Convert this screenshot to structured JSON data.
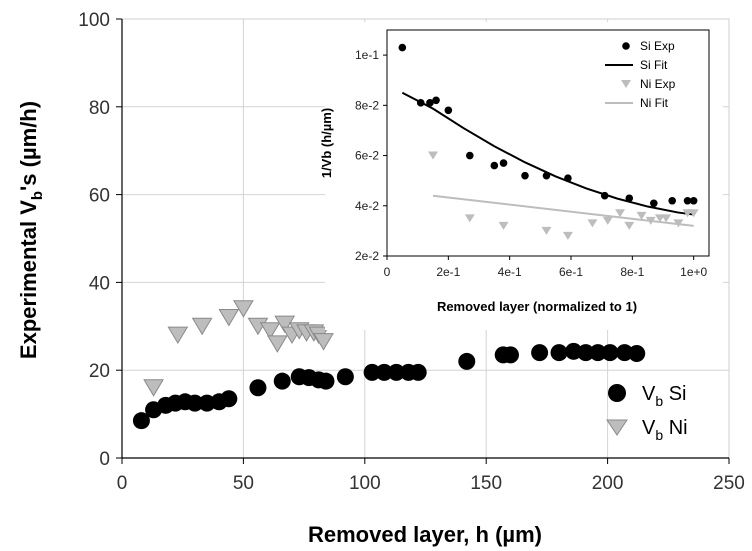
{
  "chart_data": [
    {
      "type": "scatter",
      "title": "",
      "xlabel": "Removed layer, h (µm)",
      "ylabel_main": "Experimental V",
      "ylabel_sub": "b",
      "ylabel_tail": "'s  (µm/h)",
      "xlim": [
        0,
        250
      ],
      "ylim": [
        0,
        100
      ],
      "x_ticks": [
        0,
        50,
        100,
        150,
        200,
        250
      ],
      "y_ticks": [
        0,
        20,
        40,
        60,
        80,
        100
      ],
      "grid": true,
      "legend_position": "bottom-right",
      "series": [
        {
          "name": "Vb Si",
          "legend_main": "V",
          "legend_sub": "b",
          "legend_tail": "  Si",
          "marker": "circle",
          "color": "#000000",
          "x": [
            8,
            13,
            18,
            22,
            26,
            30,
            35,
            40,
            44,
            56,
            66,
            73,
            77,
            81,
            84,
            92,
            103,
            108,
            113,
            118,
            122,
            142,
            157,
            160,
            172,
            180,
            186,
            191,
            196,
            201,
            207,
            212
          ],
          "y": [
            8.5,
            11,
            12,
            12.5,
            12.8,
            12.5,
            12.5,
            12.8,
            13.5,
            16,
            17.5,
            18.5,
            18.3,
            17.8,
            17.5,
            18.5,
            19.5,
            19.5,
            19.5,
            19.5,
            19.5,
            22,
            23.5,
            23.5,
            24,
            24,
            24.3,
            24,
            24,
            24,
            24,
            23.8
          ]
        },
        {
          "name": "Vb Ni",
          "legend_main": "V",
          "legend_sub": "b",
          "legend_tail": " Ni",
          "marker": "triangle-down",
          "color": "#bdbdbd",
          "x": [
            13,
            23,
            33,
            44,
            50,
            56,
            61,
            64,
            67,
            70,
            73,
            76,
            79,
            81,
            83
          ],
          "y": [
            16,
            28,
            30,
            32,
            34,
            30,
            29,
            26,
            30.5,
            28,
            29,
            28.5,
            28.5,
            28,
            26.5
          ]
        }
      ]
    },
    {
      "type": "scatter",
      "title": "",
      "xlabel": "Removed layer (normalized to 1)",
      "ylabel": "1/Vb (h/µm)",
      "xlim": [
        0,
        1.05
      ],
      "ylim": [
        0.02,
        0.11
      ],
      "x_ticks": [
        0,
        0.2,
        0.4,
        0.6,
        0.8,
        1.0
      ],
      "x_tick_labels": [
        "0",
        "2e-1",
        "4e-1",
        "6e-1",
        "8e-1",
        "1e+0"
      ],
      "y_ticks": [
        0.02,
        0.04,
        0.06,
        0.08,
        0.1
      ],
      "y_tick_labels": [
        "2e-2",
        "4e-2",
        "6e-2",
        "8e-2",
        "1e-1"
      ],
      "grid": false,
      "legend_position": "top-right",
      "series": [
        {
          "name": "Si Exp",
          "kind": "points",
          "marker": "circle",
          "color": "#000000",
          "x": [
            0.05,
            0.11,
            0.14,
            0.16,
            0.2,
            0.27,
            0.35,
            0.38,
            0.45,
            0.52,
            0.59,
            0.71,
            0.79,
            0.87,
            0.93,
            0.98,
            1.0
          ],
          "y": [
            0.103,
            0.081,
            0.081,
            0.082,
            0.078,
            0.06,
            0.056,
            0.057,
            0.052,
            0.052,
            0.051,
            0.044,
            0.043,
            0.041,
            0.042,
            0.042,
            0.042
          ]
        },
        {
          "name": "Si Fit",
          "kind": "line",
          "color": "#000000",
          "x": [
            0.05,
            0.15,
            0.25,
            0.35,
            0.45,
            0.55,
            0.65,
            0.75,
            0.85,
            0.95,
            1.0
          ],
          "y": [
            0.085,
            0.0787,
            0.0709,
            0.0637,
            0.0573,
            0.0517,
            0.0469,
            0.0429,
            0.0397,
            0.0373,
            0.0365
          ]
        },
        {
          "name": "Ni Exp",
          "kind": "points",
          "marker": "triangle-down",
          "color": "#bdbdbd",
          "x": [
            0.15,
            0.27,
            0.38,
            0.52,
            0.59,
            0.67,
            0.72,
            0.76,
            0.79,
            0.83,
            0.86,
            0.89,
            0.91,
            0.95,
            0.98,
            1.0
          ],
          "y": [
            0.06,
            0.035,
            0.032,
            0.03,
            0.028,
            0.033,
            0.034,
            0.037,
            0.032,
            0.036,
            0.034,
            0.035,
            0.035,
            0.033,
            0.037,
            0.037
          ]
        },
        {
          "name": "Ni Fit",
          "kind": "line",
          "color": "#bdbdbd",
          "x": [
            0.15,
            1.0
          ],
          "y": [
            0.044,
            0.032
          ]
        }
      ]
    }
  ]
}
